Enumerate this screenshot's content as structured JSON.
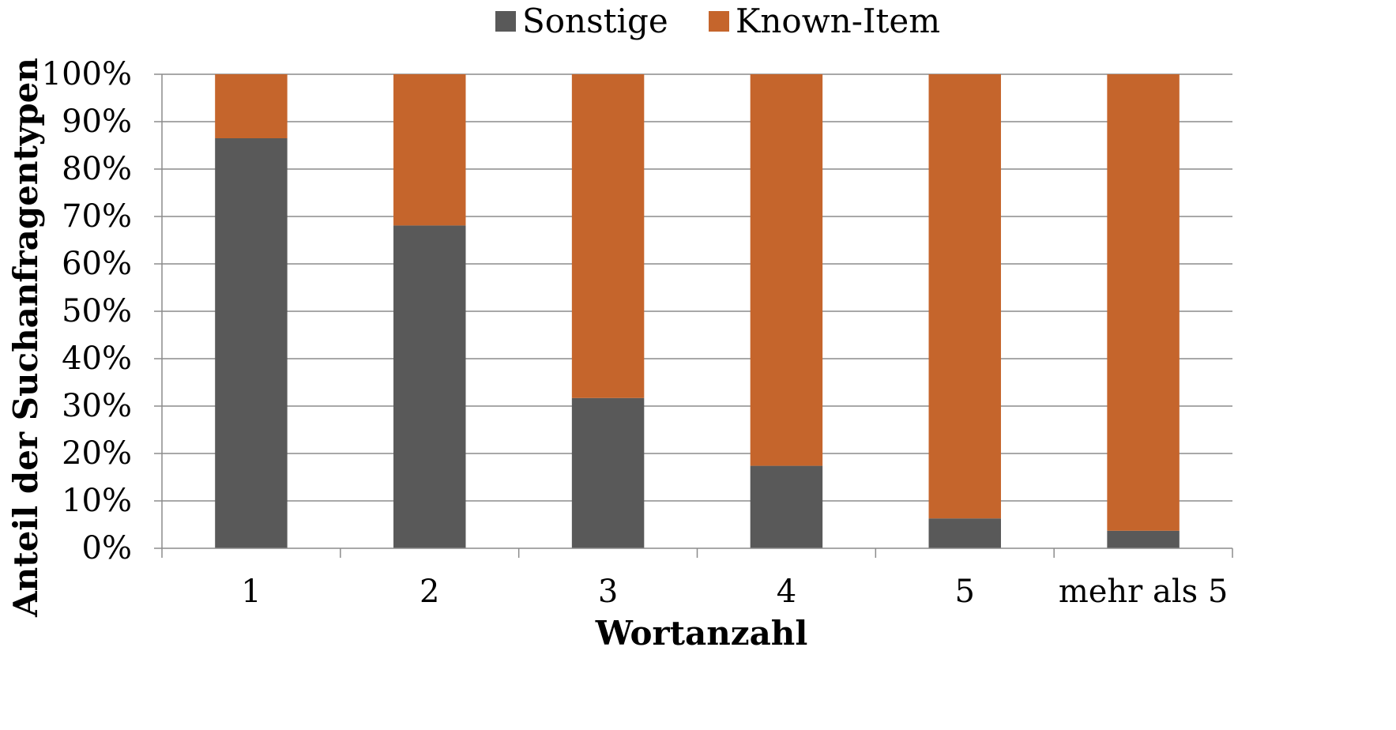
{
  "chart_data": {
    "type": "bar",
    "stacked": true,
    "percent_stacked": true,
    "categories": [
      "1",
      "2",
      "3",
      "4",
      "5",
      "mehr als 5"
    ],
    "series": [
      {
        "name": "Sonstige",
        "color": "#595959",
        "values": [
          86.5,
          68.1,
          31.7,
          17.4,
          6.3,
          3.7
        ]
      },
      {
        "name": "Known-Item",
        "color": "#C5652C",
        "values": [
          13.5,
          31.9,
          68.3,
          82.6,
          93.7,
          96.3
        ]
      }
    ],
    "xlabel": "Wortanzahl",
    "ylabel": "Anteil der Suchanfragentypen",
    "ylim": [
      0,
      100
    ],
    "y_ticks": [
      "0%",
      "10%",
      "20%",
      "30%",
      "40%",
      "50%",
      "60%",
      "70%",
      "80%",
      "90%",
      "100%"
    ],
    "grid": true,
    "legend_position": "top"
  }
}
